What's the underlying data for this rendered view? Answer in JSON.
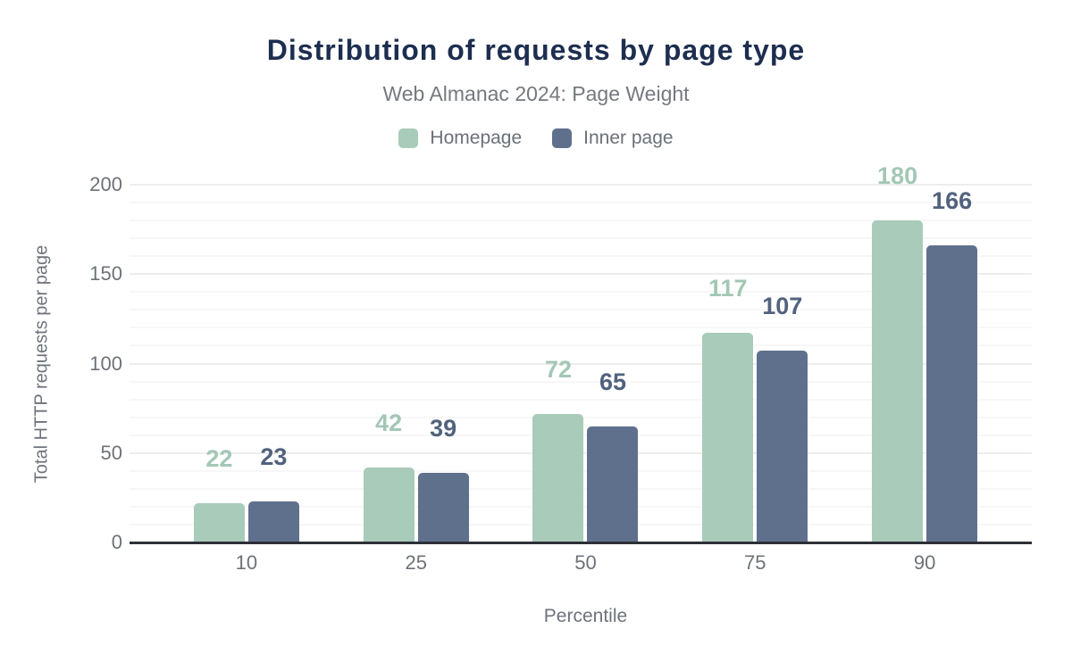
{
  "chart_data": {
    "type": "bar",
    "title": "Distribution of requests by page type",
    "subtitle": "Web Almanac 2024: Page Weight",
    "xlabel": "Percentile",
    "ylabel": "Total HTTP requests per page",
    "categories": [
      "10",
      "25",
      "50",
      "75",
      "90"
    ],
    "series": [
      {
        "name": "Homepage",
        "values": [
          22,
          42,
          72,
          117,
          180
        ],
        "color": "#a9cbba",
        "label_color": "#a3c7b5"
      },
      {
        "name": "Inner page",
        "values": [
          23,
          39,
          65,
          107,
          166
        ],
        "color": "#5f708d",
        "label_color": "#51627e"
      }
    ],
    "ylim": [
      0,
      200
    ],
    "yticks": [
      0,
      50,
      100,
      150,
      200
    ],
    "grid": {
      "minor_step": 10,
      "major_step": 50,
      "on": true
    },
    "legend_position": "top",
    "colors": {
      "title_text": "#1d2e4f",
      "subtitle_text": "#75797f",
      "legend_text": "#6b7077",
      "tick_text": "#6e7278",
      "axis_title_text": "#6e737b",
      "axis_line": "#2d3037",
      "grid_minor": "#f7f7f7",
      "grid_major": "#ededed",
      "background": "#ffffff"
    }
  }
}
